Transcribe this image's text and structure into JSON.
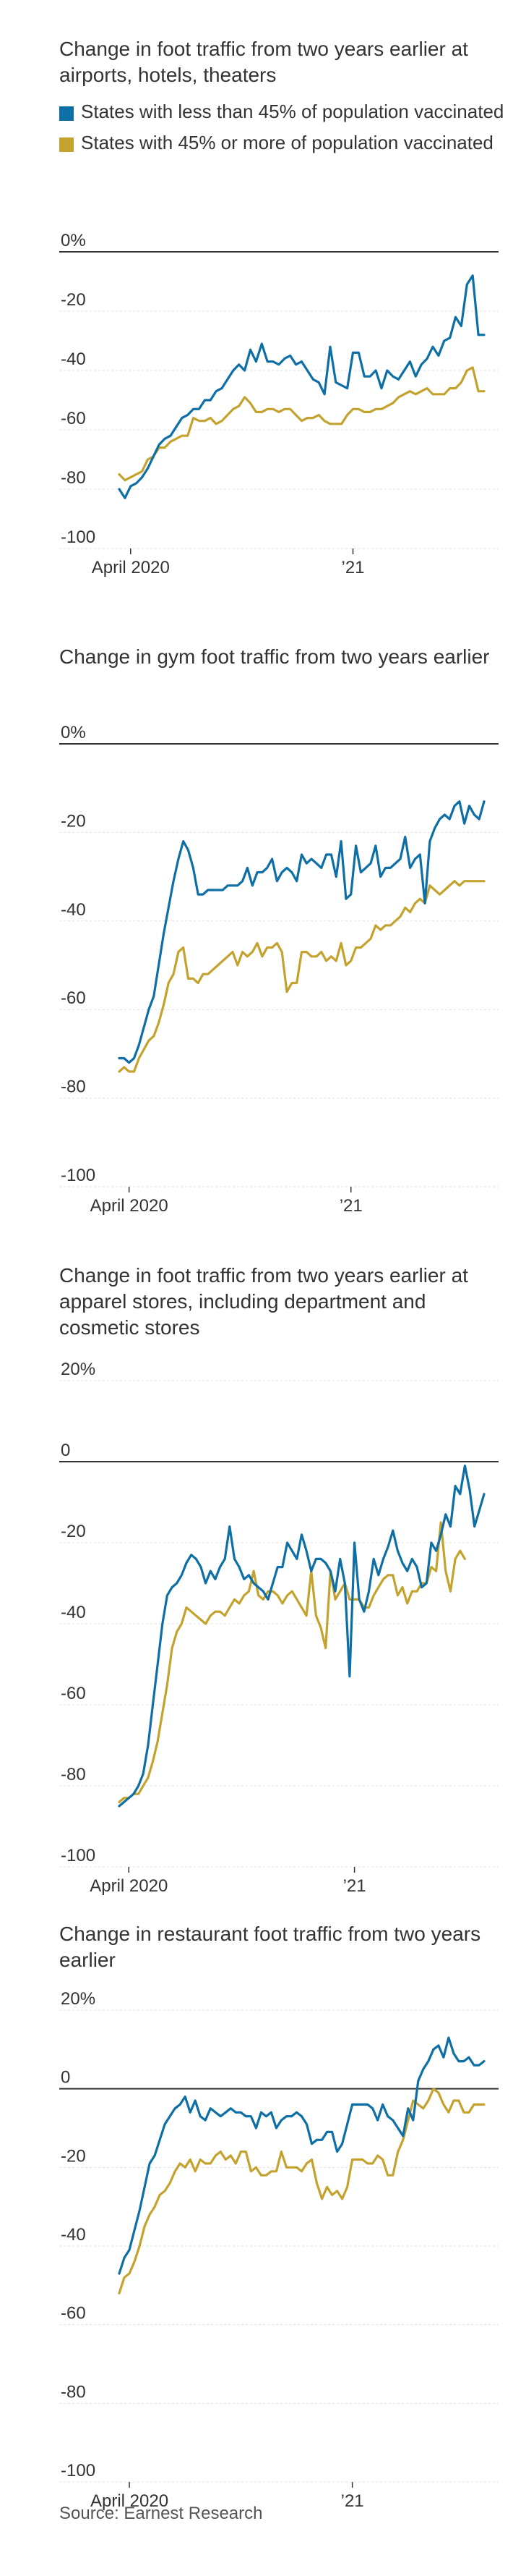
{
  "legend": [
    {
      "label": "States with less than 45% of population vaccinated",
      "color": "#0d6fa6"
    },
    {
      "label": "States with 45% or more of population vaccinated",
      "color": "#c4a22e"
    }
  ],
  "source": "Source: Earnest Research",
  "chart_data": [
    {
      "type": "line",
      "title": "Change in foot traffic from two years earlier at airports, hotels, theaters",
      "ylim": [
        -100,
        0
      ],
      "yticks": [
        0,
        -20,
        -40,
        -60,
        -80,
        -100
      ],
      "ytick_labels": [
        "0%",
        "-20",
        "-40",
        "-60",
        "-80",
        "-100"
      ],
      "xtick_labels": [
        "April 2020",
        "’21"
      ],
      "legend": "top-left",
      "series": [
        {
          "name": "States with less than 45% of population vaccinated",
          "color": "#0d6fa6",
          "values": [
            -80,
            -83,
            -79,
            -78,
            -76,
            -73,
            -69,
            -65,
            -63,
            -62,
            -59,
            -56,
            -55,
            -53,
            -53,
            -50,
            -50,
            -47,
            -46,
            -43,
            -40,
            -38,
            -40,
            -33,
            -37,
            -31,
            -37,
            -37,
            -38,
            -36,
            -35,
            -38,
            -37,
            -40,
            -43,
            -44,
            -48,
            -32,
            -44,
            -45,
            -46,
            -34,
            -34,
            -42,
            -42,
            -40,
            -46,
            -40,
            -42,
            -43,
            -40,
            -37,
            -42,
            -38,
            -36,
            -32,
            -35,
            -30,
            -29,
            -22,
            -25,
            -11,
            -8,
            -28,
            -28
          ]
        },
        {
          "name": "States with 45% or more of population vaccinated",
          "color": "#c4a22e",
          "values": [
            -75,
            -77,
            -76,
            -75,
            -74,
            -70,
            -69,
            -66,
            -66,
            -64,
            -63,
            -62,
            -62,
            -56,
            -57,
            -57,
            -56,
            -58,
            -57,
            -55,
            -53,
            -52,
            -49,
            -51,
            -54,
            -54,
            -53,
            -53,
            -54,
            -53,
            -53,
            -55,
            -57,
            -56,
            -56,
            -55,
            -57,
            -58,
            -58,
            -58,
            -55,
            -53,
            -53,
            -54,
            -54,
            -53,
            -53,
            -52,
            -51,
            -49,
            -48,
            -47,
            -48,
            -47,
            -46,
            -48,
            -48,
            -48,
            -46,
            -46,
            -44,
            -40,
            -39,
            -47,
            -47
          ]
        }
      ]
    },
    {
      "type": "line",
      "title": "Change in gym foot traffic from two years earlier",
      "ylim": [
        -100,
        0
      ],
      "yticks": [
        0,
        -20,
        -40,
        -60,
        -80,
        -100
      ],
      "ytick_labels": [
        "0%",
        "-20",
        "-40",
        "-60",
        "-80",
        "-100"
      ],
      "xtick_labels": [
        "April 2020",
        "’21"
      ],
      "series": [
        {
          "name": "States with less than 45% of population vaccinated",
          "color": "#0d6fa6",
          "values": [
            -71,
            -71,
            -72,
            -71,
            -68,
            -64,
            -60,
            -57,
            -50,
            -43,
            -37,
            -31,
            -26,
            -22,
            -24,
            -28,
            -34,
            -34,
            -33,
            -33,
            -33,
            -33,
            -32,
            -32,
            -32,
            -31,
            -28,
            -32,
            -29,
            -29,
            -28,
            -26,
            -31,
            -29,
            -28,
            -29,
            -31,
            -25,
            -27,
            -26,
            -27,
            -28,
            -25,
            -25,
            -30,
            -22,
            -35,
            -34,
            -23,
            -29,
            -28,
            -27,
            -23,
            -30,
            -28,
            -28,
            -27,
            -26,
            -21,
            -28,
            -26,
            -25,
            -36,
            -22,
            -19,
            -17,
            -16,
            -17,
            -14,
            -13,
            -18,
            -14,
            -16,
            -17,
            -13
          ]
        },
        {
          "name": "States with 45% or more of population vaccinated",
          "color": "#c4a22e",
          "values": [
            -74,
            -73,
            -74,
            -74,
            -71,
            -69,
            -67,
            -66,
            -63,
            -59,
            -54,
            -52,
            -47,
            -46,
            -53,
            -53,
            -54,
            -52,
            -52,
            -51,
            -50,
            -49,
            -48,
            -47,
            -50,
            -47,
            -48,
            -47,
            -45,
            -48,
            -46,
            -46,
            -45,
            -47,
            -56,
            -54,
            -54,
            -47,
            -47,
            -48,
            -48,
            -47,
            -49,
            -48,
            -49,
            -45,
            -50,
            -49,
            -46,
            -46,
            -45,
            -44,
            -41,
            -42,
            -41,
            -41,
            -40,
            -39,
            -37,
            -38,
            -36,
            -35,
            -36,
            -32,
            -33,
            -34,
            -33,
            -32,
            -31,
            -32,
            -31,
            -31,
            -31,
            -31,
            -31
          ]
        }
      ]
    },
    {
      "type": "line",
      "title": "Change in foot traffic from two years earlier at apparel stores, including department and cosmetic stores",
      "ylim": [
        -100,
        20
      ],
      "yticks": [
        20,
        0,
        -20,
        -40,
        -60,
        -80,
        -100
      ],
      "ytick_labels": [
        "20%",
        "0",
        "-20",
        "-40",
        "-60",
        "-80",
        "-100"
      ],
      "xtick_labels": [
        "April 2020",
        "’21"
      ],
      "series": [
        {
          "name": "States with less than 45% of population vaccinated",
          "color": "#0d6fa6",
          "values": [
            -85,
            -84,
            -83,
            -82,
            -80,
            -77,
            -70,
            -60,
            -50,
            -40,
            -33,
            -31,
            -30,
            -28,
            -25,
            -23,
            -24,
            -26,
            -30,
            -27,
            -29,
            -26,
            -24,
            -16,
            -24,
            -26,
            -29,
            -28,
            -30,
            -31,
            -32,
            -34,
            -30,
            -26,
            -26,
            -20,
            -22,
            -24,
            -18,
            -22,
            -27,
            -24,
            -24,
            -25,
            -27,
            -32,
            -24,
            -30,
            -53,
            -20,
            -34,
            -37,
            -32,
            -24,
            -28,
            -24,
            -21,
            -17,
            -22,
            -25,
            -27,
            -24,
            -26,
            -31,
            -30,
            -20,
            -22,
            -18,
            -13,
            -16,
            -6,
            -8,
            -1,
            -7,
            -16,
            -12,
            -8
          ]
        },
        {
          "name": "States with 45% or more of population vaccinated",
          "color": "#c4a22e",
          "values": [
            -84,
            -83,
            -83,
            -82,
            -82,
            -80,
            -78,
            -74,
            -69,
            -62,
            -55,
            -46,
            -42,
            -40,
            -36,
            -37,
            -38,
            -39,
            -40,
            -38,
            -37,
            -37,
            -38,
            -36,
            -34,
            -35,
            -33,
            -32,
            -27,
            -33,
            -34,
            -32,
            -32,
            -33,
            -35,
            -33,
            -32,
            -34,
            -36,
            -38,
            -27,
            -38,
            -41,
            -46,
            -27,
            -34,
            -32,
            -30,
            -34,
            -34,
            -34,
            -36,
            -36,
            -33,
            -31,
            -29,
            -28,
            -28,
            -33,
            -31,
            -35,
            -32,
            -32,
            -30,
            -30,
            -26,
            -27,
            -15,
            -27,
            -32,
            -24,
            -22,
            -24
          ]
        }
      ]
    },
    {
      "type": "line",
      "title": "Change in restaurant foot traffic from two years earlier",
      "ylim": [
        -100,
        20
      ],
      "yticks": [
        20,
        0,
        -20,
        -40,
        -60,
        -80,
        -100
      ],
      "ytick_labels": [
        "20%",
        "0",
        "-20",
        "-40",
        "-60",
        "-80",
        "-100"
      ],
      "xtick_labels": [
        "April 2020",
        "’21"
      ],
      "series": [
        {
          "name": "States with less than 45% of population vaccinated",
          "color": "#0d6fa6",
          "values": [
            -47,
            -43,
            -41,
            -36,
            -31,
            -25,
            -19,
            -17,
            -13,
            -9,
            -7,
            -5,
            -4,
            -2,
            -6,
            -3,
            -7,
            -8,
            -5,
            -6,
            -7,
            -6,
            -5,
            -6,
            -6,
            -7,
            -7,
            -10,
            -6,
            -7,
            -6,
            -10,
            -8,
            -7,
            -7,
            -6,
            -7,
            -9,
            -14,
            -13,
            -13,
            -11,
            -11,
            -16,
            -14,
            -9,
            -4,
            -4,
            -4,
            -4,
            -5,
            -8,
            -4,
            -7,
            -8,
            -10,
            -12,
            -5,
            -8,
            2,
            5,
            7,
            10,
            11,
            8,
            13,
            9,
            7,
            7,
            8,
            6,
            6,
            7
          ]
        },
        {
          "name": "States with 45% or more of population vaccinated",
          "color": "#c4a22e",
          "values": [
            -52,
            -48,
            -47,
            -44,
            -40,
            -35,
            -32,
            -30,
            -27,
            -26,
            -24,
            -21,
            -19,
            -20,
            -18,
            -21,
            -18,
            -19,
            -19,
            -17,
            -16,
            -18,
            -17,
            -19,
            -16,
            -16,
            -21,
            -20,
            -22,
            -22,
            -21,
            -21,
            -16,
            -20,
            -20,
            -20,
            -21,
            -19,
            -18,
            -24,
            -28,
            -25,
            -27,
            -26,
            -28,
            -25,
            -18,
            -18,
            -18,
            -19,
            -19,
            -17,
            -18,
            -22,
            -22,
            -16,
            -13,
            -8,
            -3,
            -4,
            -5,
            -3,
            0,
            -1,
            -4,
            -6,
            -3,
            -3,
            -6,
            -6,
            -4,
            -4,
            -4
          ]
        }
      ]
    }
  ]
}
